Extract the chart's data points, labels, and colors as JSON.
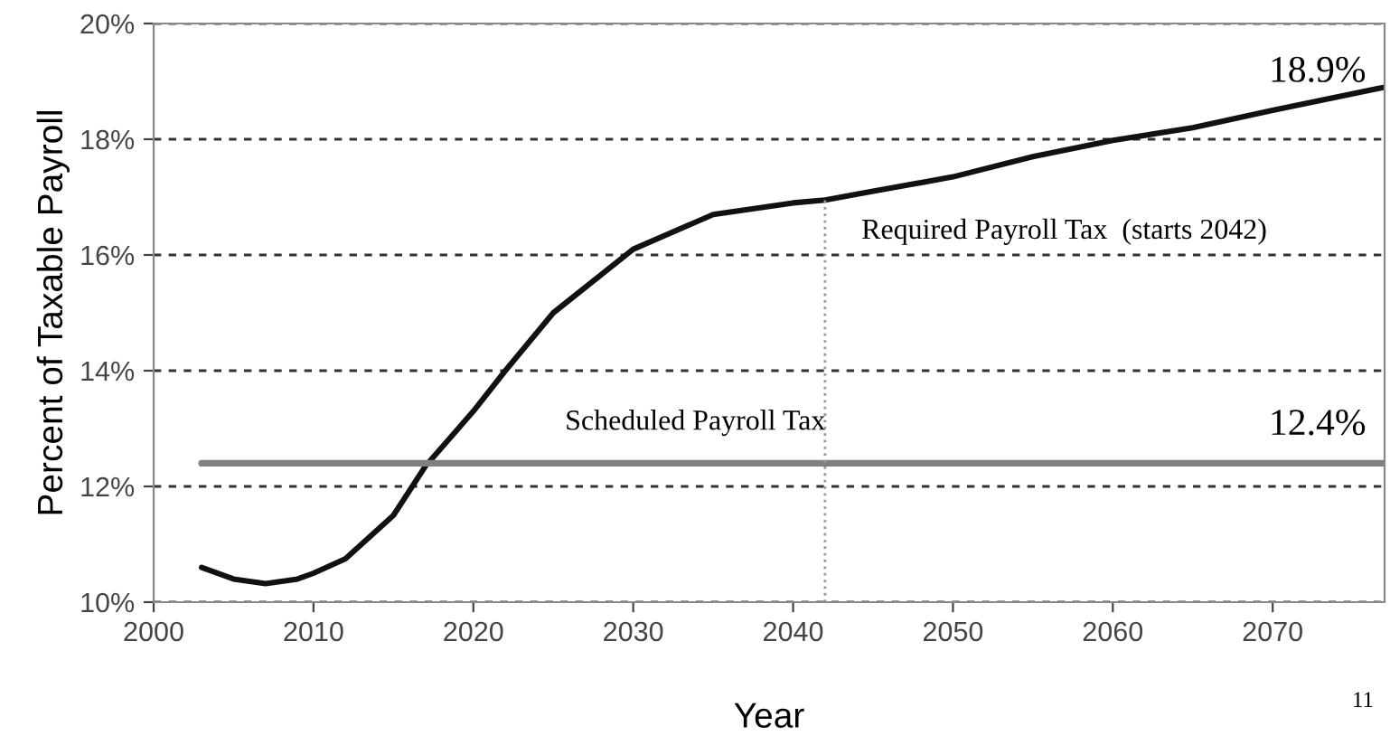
{
  "chart_data": {
    "type": "line",
    "xlabel": "Year",
    "ylabel": "Percent of Taxable Payroll",
    "xlim": [
      2000,
      2077
    ],
    "xticks": [
      2000,
      2010,
      2020,
      2030,
      2040,
      2050,
      2060,
      2070
    ],
    "ylim": [
      10,
      20
    ],
    "yticks": [
      {
        "value": 10,
        "label": "10%"
      },
      {
        "value": 12,
        "label": "12%"
      },
      {
        "value": 14,
        "label": "14%"
      },
      {
        "value": 16,
        "label": "16%"
      },
      {
        "value": 18,
        "label": "18%"
      },
      {
        "value": 20,
        "label": "20%"
      }
    ],
    "grid": "y",
    "line_style": "solid",
    "series": [
      {
        "color": "#111111",
        "x": [
          2003,
          2005,
          2007,
          2009,
          2010,
          2012,
          2015,
          2017,
          2020,
          2022,
          2025,
          2030,
          2035,
          2040,
          2042,
          2045,
          2050,
          2055,
          2060,
          2065,
          2070,
          2077
        ],
        "values": [
          10.6,
          10.4,
          10.32,
          10.4,
          10.5,
          10.75,
          11.5,
          12.35,
          13.3,
          14.0,
          15.0,
          16.1,
          16.7,
          16.9,
          16.95,
          17.1,
          17.35,
          17.7,
          17.98,
          18.2,
          18.5,
          18.9
        ]
      },
      {
        "color": "#808080",
        "x": [
          2003,
          2077
        ],
        "values": [
          12.4,
          12.4
        ]
      }
    ],
    "ref_lines": [
      {
        "axis": "x",
        "value": 2042,
        "color": "#999999",
        "line_style": "dotted"
      }
    ],
    "annotations": [
      "18.9%",
      "12.4%",
      "Required Payroll Tax  (starts 2042)",
      "Scheduled Payroll Tax",
      "11"
    ]
  }
}
